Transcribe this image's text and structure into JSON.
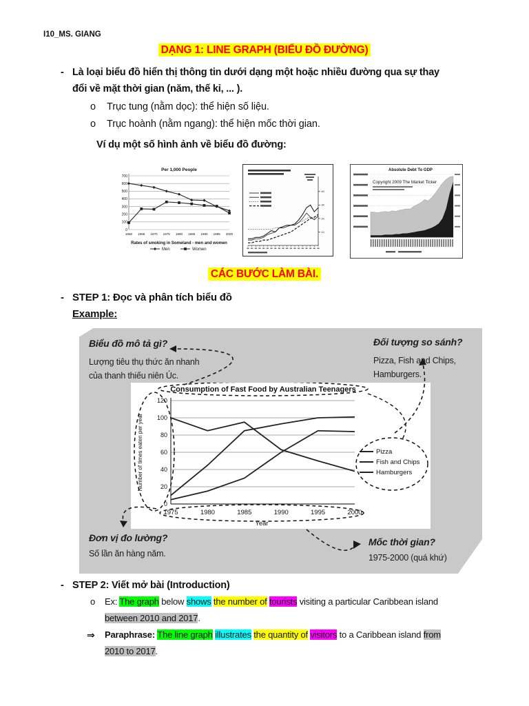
{
  "colors": {
    "red": "#ff0000",
    "yellow": "#ffff00",
    "green": "#00ff00",
    "cyan": "#00ffff",
    "magenta": "#ff00ff",
    "gray": "#bfbfbf",
    "figure_bg": "#c9c9c9"
  },
  "header": "I10_MS. GIANG",
  "title": "DẠNG 1: LINE GRAPH (BIỂU ĐỒ ĐƯỜNG)",
  "bullet_dash": "-",
  "sub_bullet": "o",
  "intro": {
    "line1": "Là loại biểu đồ hiển thị thông tin dưới dạng một hoặc nhiều đường qua sự thay",
    "line2": "đổi về mặt thời gian (năm, thế kỉ, ... ).",
    "sub1": "Trục tung (nằm dọc): thể hiện số liệu.",
    "sub2": "Trục hoành (nằm ngang): thể hiện mốc thời gian.",
    "examples_caption": "Ví dụ một số hình ảnh về biểu đồ đường:"
  },
  "section_heading": "CÁC BƯỚC LÀM BÀI.",
  "step1": {
    "heading": "STEP 1: Đọc và phân tích biểu đồ",
    "example_label": "Example:"
  },
  "figure": {
    "q_describe": "Biểu đồ mô tả gì?",
    "a_describe_1": "Lượng tiêu thụ thức ăn nhanh",
    "a_describe_2": "của thanh thiếu niên Úc.",
    "q_compare": "Đối tượng so sánh?",
    "a_compare_1": "Pizza, Fish and Chips,",
    "a_compare_2": "Hamburgers.",
    "q_unit": "Đơn vị đo lường?",
    "a_unit": "Số lần ăn hàng năm.",
    "q_time": "Mốc thời gian?",
    "a_time": "1975-2000 (quá khứ)"
  },
  "step2": {
    "heading": "STEP 2: Viết mở bài (Introduction)",
    "arrow_bullet": "⇒",
    "ex_line1": [
      {
        "t": "Ex: "
      },
      {
        "t": "The graph",
        "bg": "green"
      },
      {
        "t": " below "
      },
      {
        "t": "shows",
        "bg": "cyan"
      },
      {
        "t": " "
      },
      {
        "t": "the number of",
        "bg": "yellow"
      },
      {
        "t": " "
      },
      {
        "t": "tourists",
        "bg": "magenta"
      },
      {
        "t": " visiting a particular Caribbean island"
      }
    ],
    "ex_line2": [
      {
        "t": "between 2010 and 2017",
        "bg": "gray"
      },
      {
        "t": "."
      }
    ],
    "para_line1": [
      {
        "t": "Paraphrase: ",
        "b": true
      },
      {
        "t": "The line graph",
        "bg": "green"
      },
      {
        "t": " "
      },
      {
        "t": "illustrates",
        "bg": "cyan"
      },
      {
        "t": " "
      },
      {
        "t": "the quantity of",
        "bg": "yellow"
      },
      {
        "t": " "
      },
      {
        "t": "visitors",
        "bg": "magenta"
      },
      {
        "t": " to a Caribbean island "
      },
      {
        "t": "from",
        "bg": "gray"
      }
    ],
    "para_line2": [
      {
        "t": "2010 to 2017",
        "bg": "gray"
      },
      {
        "t": "."
      }
    ]
  },
  "chart_data": [
    {
      "id": "smoking",
      "type": "line",
      "title": "Per 1,000 People",
      "caption": "Rates of smoking in Someland - men and women",
      "x": [
        1960,
        1965,
        1970,
        1975,
        1980,
        1985,
        1990,
        1995,
        2000
      ],
      "ylim": [
        0,
        700
      ],
      "yticks": [
        0,
        100,
        200,
        300,
        400,
        500,
        600,
        700
      ],
      "legend_position": "bottom",
      "series": [
        {
          "name": "Men",
          "marker": "diamond",
          "values": [
            600,
            575,
            550,
            500,
            460,
            385,
            380,
            300,
            245
          ]
        },
        {
          "name": "Women",
          "marker": "square",
          "values": [
            90,
            270,
            265,
            360,
            350,
            335,
            315,
            305,
            215
          ]
        }
      ]
    },
    {
      "id": "students",
      "type": "line",
      "note": "scanned chart, title and legend text illegible; four rising lines 1982-2000",
      "right_axis_ticks": [
        40,
        30,
        20,
        10
      ],
      "ylim": [
        0,
        45
      ],
      "series": [
        {
          "dash": "solid",
          "values": [
            5,
            5,
            6,
            6,
            7,
            9,
            11,
            10,
            13,
            14,
            15,
            15,
            16,
            19,
            23,
            28,
            30,
            25,
            28
          ]
        },
        {
          "dash": "solid",
          "values": [
            4,
            4,
            5,
            5,
            6,
            8,
            9,
            10,
            13,
            13,
            14,
            15,
            15,
            17,
            20,
            24,
            21,
            19,
            22
          ]
        },
        {
          "dash": "dot",
          "values": [
            12,
            12,
            12,
            12,
            12,
            12,
            12,
            13,
            13,
            13,
            14,
            15,
            16,
            17,
            18,
            20,
            21,
            20,
            21
          ]
        },
        {
          "dash": "dash",
          "values": [
            2,
            2,
            3,
            3,
            4,
            4,
            5,
            6,
            7,
            8,
            9,
            10,
            12,
            14,
            16,
            18,
            20,
            21,
            23
          ]
        }
      ]
    },
    {
      "id": "debt",
      "type": "area",
      "title": "Absolute Debt To GDP",
      "watermark": "Copyright 2009 The Market Ticker",
      "ylim": [
        0,
        100
      ],
      "series": [
        {
          "name": "light",
          "values": [
            40,
            40,
            39,
            40,
            41,
            40,
            42,
            41,
            43,
            44,
            45,
            45,
            49,
            52,
            55,
            60,
            58,
            63,
            70,
            78,
            86,
            92,
            96,
            97
          ]
        },
        {
          "name": "dark",
          "values": [
            3,
            3,
            3,
            3,
            4,
            4,
            4,
            5,
            5,
            6,
            6,
            7,
            8,
            9,
            10,
            11,
            13,
            15,
            18,
            22,
            30,
            45,
            70,
            88
          ]
        }
      ]
    },
    {
      "id": "fastfood",
      "type": "line",
      "title": "Consumption of Fast Food by Australian Teenagers",
      "xlabel": "Year",
      "ylabel": "Number of times eaten per year",
      "x": [
        1975,
        1980,
        1985,
        1990,
        1995,
        2000
      ],
      "ylim": [
        0,
        120
      ],
      "yticks": [
        0,
        20,
        40,
        60,
        80,
        100,
        120
      ],
      "legend_position": "right",
      "series": [
        {
          "name": "Pizza",
          "values": [
            5,
            15,
            30,
            60,
            85,
            84
          ]
        },
        {
          "name": "Fish and Chips",
          "values": [
            100,
            85,
            95,
            63,
            50,
            38
          ]
        },
        {
          "name": "Hamburgers",
          "values": [
            10,
            45,
            85,
            93,
            100,
            101
          ]
        }
      ]
    }
  ]
}
